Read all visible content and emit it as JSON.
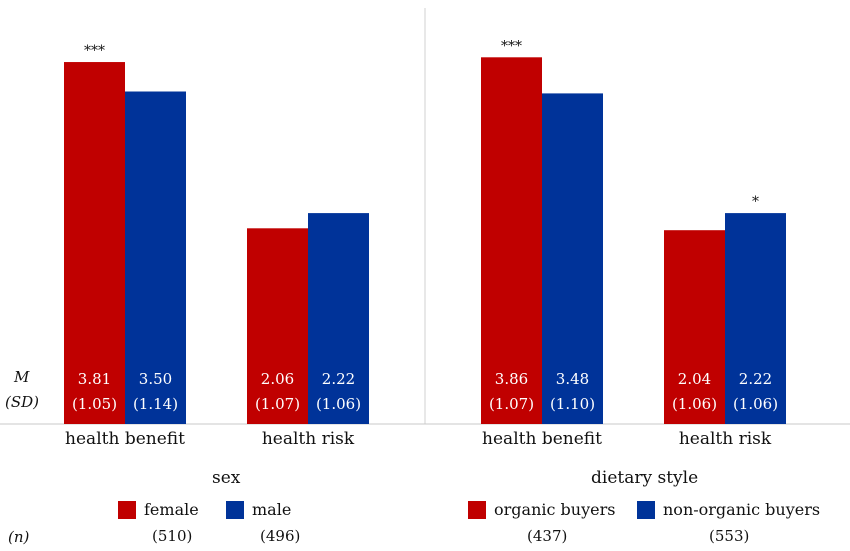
{
  "colors": {
    "female_organic": "#c00000",
    "male_nonorganic": "#003399",
    "divider": "#d0d0d0"
  },
  "row_labels": {
    "m": "M",
    "sd": "(SD)",
    "n": "(n)"
  },
  "chart_data": [
    {
      "type": "bar",
      "title": "sex",
      "categories": [
        "health benefit",
        "health risk"
      ],
      "series": [
        {
          "name": "female",
          "values": [
            3.81,
            2.06
          ],
          "sd": [
            "(1.05)",
            "(1.07)"
          ],
          "n": "(510)"
        },
        {
          "name": "male",
          "values": [
            3.5,
            2.22
          ],
          "sd": [
            "(1.14)",
            "(1.06)"
          ],
          "n": "(496)"
        }
      ],
      "significance": [
        "***",
        ""
      ],
      "ylim": [
        0,
        4.2
      ]
    },
    {
      "type": "bar",
      "title": "dietary style",
      "categories": [
        "health benefit",
        "health risk"
      ],
      "series": [
        {
          "name": "organic buyers",
          "values": [
            3.86,
            2.04
          ],
          "sd": [
            "(1.07)",
            "(1.06)"
          ],
          "n": "(437)"
        },
        {
          "name": "non-organic buyers",
          "values": [
            3.48,
            2.22
          ],
          "sd": [
            "(1.10)",
            "(1.06)"
          ],
          "n": "(553)"
        }
      ],
      "significance": [
        "***",
        "*"
      ],
      "ylim": [
        0,
        4.2
      ]
    }
  ]
}
